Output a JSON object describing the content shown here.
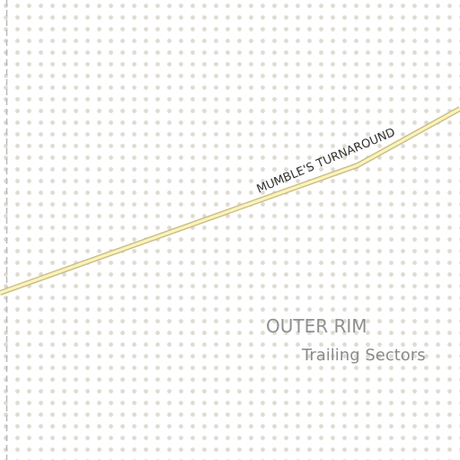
{
  "map": {
    "colors": {
      "background": "#ffffff",
      "dot": "#dedbd2",
      "boundary": "#b9b9b9",
      "road_fill": "#fbf3b8",
      "road_casing": "#c8bd88",
      "road_label": "#333333",
      "region_label": "#909090"
    },
    "road": {
      "name": "MUMBLE'S TURNAROUND"
    },
    "region": {
      "name": "OUTER RIM",
      "subtitle": "Trailing Sectors"
    }
  }
}
